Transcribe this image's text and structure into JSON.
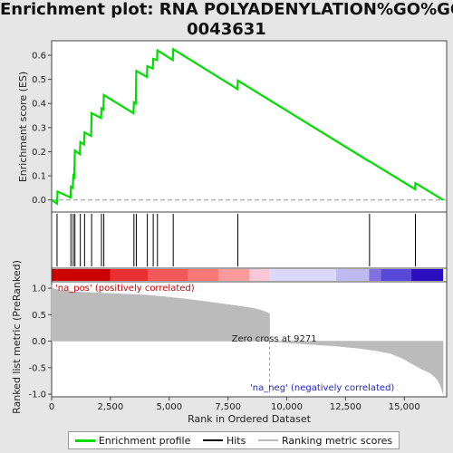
{
  "title_line1": "Enrichment plot: RNA POLYADENYLATION%GO%GO:",
  "title_line2": "0043631",
  "chart_data": {
    "type": "line",
    "xlabel": "Rank in Ordered Dataset",
    "xlim": [
      0,
      16800
    ],
    "xticks": [
      0,
      2500,
      5000,
      7500,
      10000,
      12500,
      15000
    ],
    "xtick_labels": [
      "0",
      "2,500",
      "5,000",
      "7,500",
      "10,000",
      "12,500",
      "15,000"
    ],
    "es_panel": {
      "ylabel": "Enrichment score (ES)",
      "ylim": [
        -0.05,
        0.66
      ],
      "yticks": [
        0.0,
        0.1,
        0.2,
        0.3,
        0.4,
        0.5,
        0.6
      ],
      "ytick_labels": [
        "0.0",
        "0.1",
        "0.2",
        "0.3",
        "0.4",
        "0.5",
        "0.6"
      ],
      "series_name": "Enrichment profile",
      "color": "#00dd00",
      "points": [
        [
          0,
          0.0
        ],
        [
          230,
          -0.015
        ],
        [
          250,
          0.035
        ],
        [
          800,
          0.01
        ],
        [
          820,
          0.055
        ],
        [
          900,
          0.05
        ],
        [
          920,
          0.1
        ],
        [
          960,
          0.095
        ],
        [
          990,
          0.205
        ],
        [
          1200,
          0.19
        ],
        [
          1220,
          0.24
        ],
        [
          1380,
          0.23
        ],
        [
          1400,
          0.28
        ],
        [
          1680,
          0.265
        ],
        [
          1700,
          0.36
        ],
        [
          2100,
          0.34
        ],
        [
          2120,
          0.38
        ],
        [
          2200,
          0.375
        ],
        [
          2220,
          0.435
        ],
        [
          3480,
          0.36
        ],
        [
          3500,
          0.405
        ],
        [
          3580,
          0.4
        ],
        [
          3600,
          0.535
        ],
        [
          4050,
          0.51
        ],
        [
          4070,
          0.555
        ],
        [
          4300,
          0.545
        ],
        [
          4320,
          0.585
        ],
        [
          4480,
          0.58
        ],
        [
          4500,
          0.62
        ],
        [
          5150,
          0.58
        ],
        [
          5170,
          0.625
        ],
        [
          7900,
          0.46
        ],
        [
          7920,
          0.495
        ],
        [
          13500,
          0.16
        ],
        [
          13520,
          0.16
        ],
        [
          15450,
          0.045
        ],
        [
          15470,
          0.07
        ],
        [
          16650,
          0.0
        ]
      ]
    },
    "hits": [
      230,
      820,
      920,
      990,
      1220,
      1400,
      1700,
      2120,
      2220,
      3500,
      3600,
      4070,
      4320,
      4500,
      5170,
      7920,
      13520,
      15470
    ],
    "hits_label": "Hits",
    "color_bar": [
      {
        "from": 0,
        "to": 2500,
        "color": "#cc0000"
      },
      {
        "from": 2500,
        "to": 4100,
        "color": "#e83030"
      },
      {
        "from": 4100,
        "to": 5800,
        "color": "#f25858"
      },
      {
        "from": 5800,
        "to": 7100,
        "color": "#f87878"
      },
      {
        "from": 7100,
        "to": 8400,
        "color": "#fa9a9a"
      },
      {
        "from": 8400,
        "to": 9271,
        "color": "#fcc8d8"
      },
      {
        "from": 9271,
        "to": 12100,
        "color": "#dcd8fa"
      },
      {
        "from": 12100,
        "to": 13500,
        "color": "#c0baf2"
      },
      {
        "from": 13500,
        "to": 14000,
        "color": "#8070e0"
      },
      {
        "from": 14000,
        "to": 15300,
        "color": "#5a48d8"
      },
      {
        "from": 15300,
        "to": 16650,
        "color": "#2a0ec0"
      }
    ],
    "ranked_panel": {
      "ylabel": "Ranked list metric (PreRanked)",
      "ylim": [
        -1.05,
        1.12
      ],
      "yticks": [
        1.0,
        0.5,
        0.0,
        -0.5,
        -1.0
      ],
      "ytick_labels": [
        "1.0",
        "0.5",
        "0.0",
        "-0.5",
        "-1.0"
      ],
      "series_name": "Ranking metric scores",
      "color": "#bbbbbb",
      "points": [
        [
          0,
          1.05
        ],
        [
          60,
          0.99
        ],
        [
          400,
          0.96
        ],
        [
          1000,
          0.93
        ],
        [
          2000,
          0.91
        ],
        [
          3000,
          0.89
        ],
        [
          4000,
          0.87
        ],
        [
          5000,
          0.83
        ],
        [
          6000,
          0.78
        ],
        [
          7000,
          0.72
        ],
        [
          8000,
          0.66
        ],
        [
          8600,
          0.62
        ],
        [
          9000,
          0.57
        ],
        [
          9271,
          0.52
        ],
        [
          9272,
          -0.01
        ],
        [
          10000,
          -0.03
        ],
        [
          11000,
          -0.06
        ],
        [
          12000,
          -0.09
        ],
        [
          13000,
          -0.13
        ],
        [
          13800,
          -0.18
        ],
        [
          14400,
          -0.23
        ],
        [
          14900,
          -0.32
        ],
        [
          15300,
          -0.42
        ],
        [
          15700,
          -0.52
        ],
        [
          16100,
          -0.6
        ],
        [
          16400,
          -0.72
        ],
        [
          16550,
          -0.85
        ],
        [
          16650,
          -1.0
        ]
      ],
      "zero_cross_label": "Zero cross at 9271",
      "zero_cross": 9271,
      "pos_label": "'na_pos' (positively correlated)",
      "neg_label": "'na_neg' (negatively correlated)"
    }
  },
  "legend": {
    "enrichment": "Enrichment profile",
    "hits": "Hits",
    "ranking": "Ranking metric scores",
    "enrichment_color": "#00dd00",
    "hits_color": "#000000",
    "ranking_color": "#bbbbbb"
  }
}
